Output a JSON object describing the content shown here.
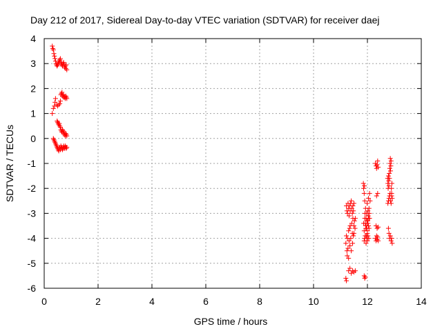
{
  "chart_data": {
    "type": "scatter",
    "title": "Day 212 of 2017, Sidereal Day-to-day VTEC variation (SDTVAR) for receiver daej",
    "xlabel": "GPS time / hours",
    "ylabel": "SDTVAR / TECUs",
    "xlim": [
      0,
      14
    ],
    "ylim": [
      -6,
      4
    ],
    "xticks": [
      0,
      2,
      4,
      6,
      8,
      10,
      12,
      14
    ],
    "yticks": [
      -6,
      -5,
      -4,
      -3,
      -2,
      -1,
      0,
      1,
      2,
      3,
      4
    ],
    "grid": true,
    "marker": "plus",
    "color": "#ff0000",
    "series": [
      {
        "name": "SDTVAR",
        "x": [
          0.3,
          0.32,
          0.34,
          0.36,
          0.38,
          0.4,
          0.42,
          0.44,
          0.46,
          0.48,
          0.5,
          0.52,
          0.54,
          0.56,
          0.58,
          0.6,
          0.62,
          0.64,
          0.66,
          0.68,
          0.7,
          0.72,
          0.74,
          0.76,
          0.78,
          0.8,
          0.82,
          0.84,
          0.3,
          0.34,
          0.38,
          0.4,
          0.42,
          0.46,
          0.5,
          0.54,
          0.58,
          0.6,
          0.62,
          0.64,
          0.66,
          0.68,
          0.7,
          0.72,
          0.74,
          0.76,
          0.78,
          0.8,
          0.82,
          0.84,
          0.48,
          0.5,
          0.52,
          0.54,
          0.56,
          0.58,
          0.6,
          0.62,
          0.64,
          0.66,
          0.68,
          0.7,
          0.72,
          0.74,
          0.76,
          0.78,
          0.8,
          0.82,
          0.84,
          0.34,
          0.36,
          0.38,
          0.4,
          0.42,
          0.44,
          0.46,
          0.48,
          0.5,
          0.52,
          0.54,
          0.56,
          0.58,
          0.6,
          0.62,
          0.64,
          0.66,
          0.68,
          0.7,
          0.72,
          0.74,
          0.76,
          0.78,
          0.8,
          0.82,
          0.84,
          11.2,
          11.22,
          11.24,
          11.25,
          11.26,
          11.28,
          11.3,
          11.3,
          11.32,
          11.34,
          11.35,
          11.36,
          11.38,
          11.4,
          11.42,
          11.44,
          11.45,
          11.46,
          11.48,
          11.5,
          11.5,
          11.52,
          11.54,
          11.55,
          11.22,
          11.24,
          11.26,
          11.28,
          11.3,
          11.32,
          11.34,
          11.36,
          11.38,
          11.4,
          11.42,
          11.44,
          11.46,
          11.48,
          11.5,
          11.2,
          11.22,
          11.3,
          11.35,
          11.4,
          11.45,
          11.5,
          11.55,
          11.85,
          11.86,
          11.88,
          11.89,
          11.9,
          11.91,
          11.92,
          11.93,
          11.94,
          11.95,
          11.96,
          11.97,
          11.98,
          11.99,
          12.0,
          12.01,
          12.02,
          12.03,
          12.04,
          12.05,
          12.06,
          12.07,
          12.08,
          12.1,
          11.86,
          11.88,
          11.9,
          11.92,
          11.94,
          11.96,
          11.98,
          12.0,
          12.02,
          12.04,
          12.06,
          12.08,
          11.88,
          11.9,
          11.92,
          11.95,
          11.98,
          12.0,
          12.02,
          12.05,
          11.88,
          11.9,
          11.92,
          12.3,
          12.32,
          12.34,
          12.36,
          12.38,
          12.4,
          12.3,
          12.32,
          12.34,
          12.36,
          12.38,
          12.4,
          12.32,
          12.36,
          12.4,
          12.34,
          12.38,
          12.75,
          12.76,
          12.77,
          12.78,
          12.79,
          12.8,
          12.81,
          12.82,
          12.83,
          12.84,
          12.85,
          12.86,
          12.87,
          12.88,
          12.89,
          12.9,
          12.91,
          12.92,
          12.76,
          12.78,
          12.8,
          12.82,
          12.84,
          12.86,
          12.88,
          12.9,
          12.78,
          12.8,
          12.82,
          12.85,
          12.88,
          12.9,
          12.92
        ],
        "y": [
          3.7,
          3.6,
          3.55,
          3.4,
          3.3,
          3.2,
          3.1,
          3.0,
          2.95,
          2.9,
          2.95,
          3.0,
          3.1,
          3.05,
          3.15,
          3.2,
          3.0,
          3.05,
          2.95,
          2.9,
          3.0,
          3.05,
          2.95,
          2.85,
          2.9,
          2.8,
          2.95,
          2.75,
          1.0,
          1.2,
          1.3,
          1.45,
          1.6,
          1.35,
          1.3,
          1.35,
          1.4,
          1.5,
          1.75,
          1.8,
          1.85,
          1.7,
          1.75,
          1.65,
          1.7,
          1.65,
          1.6,
          1.7,
          1.65,
          1.6,
          0.7,
          0.65,
          0.6,
          0.55,
          0.6,
          0.5,
          0.45,
          0.35,
          0.3,
          0.25,
          0.35,
          0.3,
          0.2,
          0.25,
          0.15,
          0.1,
          0.2,
          0.15,
          0.1,
          0.0,
          -0.05,
          -0.1,
          -0.15,
          -0.2,
          -0.25,
          -0.3,
          -0.35,
          -0.4,
          -0.45,
          -0.5,
          -0.4,
          -0.35,
          -0.45,
          -0.3,
          -0.4,
          -0.35,
          -0.45,
          -0.4,
          -0.3,
          -0.35,
          -0.4,
          -0.3,
          -0.35,
          -0.4,
          -0.35,
          -4.2,
          -3.9,
          -4.5,
          -4.7,
          -4.0,
          -4.4,
          -3.7,
          -4.8,
          -4.1,
          -3.6,
          -4.3,
          -3.5,
          -4.0,
          -4.5,
          -3.4,
          -3.8,
          -4.2,
          -3.2,
          -3.9,
          -3.5,
          -3.8,
          -3.3,
          -3.6,
          -3.2,
          -2.7,
          -2.9,
          -3.0,
          -2.6,
          -2.8,
          -3.1,
          -2.7,
          -2.9,
          -2.6,
          -2.5,
          -2.8,
          -3.0,
          -2.7,
          -2.9,
          -2.6,
          -5.6,
          -5.7,
          -5.3,
          -5.2,
          -5.4,
          -5.3,
          -5.35,
          -5.3,
          -1.8,
          -2.0,
          -2.2,
          -1.9,
          -2.5,
          -3.0,
          -3.4,
          -2.8,
          -3.6,
          -3.2,
          -3.9,
          -3.0,
          -3.5,
          -2.6,
          -3.8,
          -3.3,
          -2.9,
          -3.1,
          -2.4,
          -3.2,
          -2.8,
          -3.0,
          -2.2,
          -2.5,
          -3.4,
          -3.7,
          -3.2,
          -3.9,
          -3.5,
          -3.6,
          -3.3,
          -3.7,
          -3.4,
          -3.5,
          -3.6,
          -3.2,
          -4.1,
          -4.0,
          -3.9,
          -4.2,
          -4.0,
          -4.1,
          -3.9,
          -4.0,
          -5.5,
          -5.6,
          -5.55,
          -1.0,
          -1.1,
          -1.2,
          -1.05,
          -0.9,
          -1.15,
          -4.0,
          -4.1,
          -3.9,
          -4.05,
          -3.95,
          -4.1,
          -3.5,
          -3.6,
          -3.55,
          -2.3,
          -2.2,
          -1.6,
          -1.8,
          -2.0,
          -1.5,
          -1.7,
          -1.9,
          -1.4,
          -1.6,
          -1.2,
          -1.0,
          -0.8,
          -1.3,
          -1.1,
          -0.9,
          -2.0,
          -2.2,
          -1.8,
          -2.4,
          -2.6,
          -2.5,
          -2.4,
          -2.3,
          -2.2,
          -2.5,
          -2.6,
          -2.3,
          -3.6,
          -3.8,
          -4.0,
          -3.9,
          -4.1,
          -4.0,
          -4.2
        ]
      }
    ]
  }
}
